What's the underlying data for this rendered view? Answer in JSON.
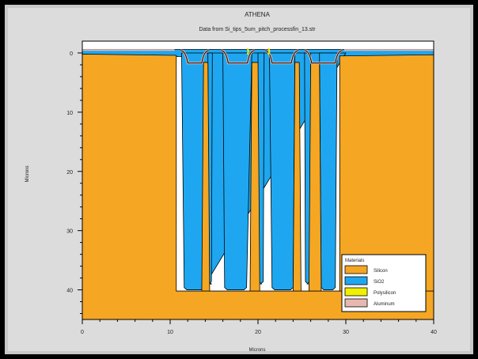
{
  "chart_data": {
    "type": "area",
    "title": "ATHENA",
    "subtitle": "Data from Si_tips_5um_pitch_processfin_13.str",
    "xlabel": "Microns",
    "ylabel": "Microns",
    "xlim": [
      0,
      40
    ],
    "ylim": [
      45,
      -2
    ],
    "x_ticks": [
      0,
      10,
      20,
      30,
      40
    ],
    "y_ticks": [
      0,
      10,
      20,
      30,
      40
    ],
    "y_inverted": true,
    "grid": false,
    "legend_position": "bottom-right",
    "legend": {
      "title": "Materials",
      "entries": [
        {
          "name": "Silicon",
          "color": "#f5a623"
        },
        {
          "name": "SiO2",
          "color": "#1ea7f0"
        },
        {
          "name": "Polysilicon",
          "color": "#f0f000"
        },
        {
          "name": "Aluminum",
          "color": "#e8b8b0"
        }
      ]
    },
    "regions": {
      "silicon": {
        "color": "#f5a623",
        "outline": [
          [
            0,
            -0.2
          ],
          [
            0,
            45
          ],
          [
            40,
            45
          ],
          [
            40,
            -0.2
          ],
          [
            39,
            0.4
          ],
          [
            31,
            0.4
          ],
          [
            30,
            0.8
          ],
          [
            29.3,
            1.6
          ],
          [
            29.3,
            40
          ],
          [
            24.7,
            40
          ],
          [
            24.7,
            2.3
          ],
          [
            24.2,
            1.5
          ],
          [
            23.7,
            0.5
          ],
          [
            22.5,
            0.3
          ],
          [
            21.3,
            0.6
          ],
          [
            20.7,
            1.7
          ],
          [
            20.7,
            2.0
          ],
          [
            20,
            2.0
          ],
          [
            19.2,
            1.2
          ],
          [
            18.5,
            0.5
          ],
          [
            17.3,
            0.3
          ],
          [
            16.2,
            0.6
          ],
          [
            15.7,
            1.6
          ],
          [
            15.3,
            2.3
          ],
          [
            15.3,
            40
          ],
          [
            10.7,
            40
          ],
          [
            10.7,
            1.0
          ],
          [
            9.5,
            0.5
          ],
          [
            1,
            0.4
          ]
        ]
      },
      "sio2": {
        "color": "#1ea7f0",
        "trenches": [
          {
            "top": [
              11.3,
              30.0
            ],
            "bottom": [
              11.6,
              13.8
            ],
            "depth": 40
          },
          {
            "top": [
              14.3,
              14.8
            ],
            "bottom": [
              14.4,
              14.7
            ],
            "depth": 39
          },
          {
            "top": [
              16.0,
              19.3
            ],
            "bottom": [
              16.2,
              18.7
            ],
            "depth": 40
          },
          {
            "top": [
              20.0,
              20.7
            ],
            "bottom": [
              20.1,
              20.6
            ],
            "depth": 39
          },
          {
            "top": [
              21.3,
              24.2
            ],
            "bottom": [
              21.6,
              24.0
            ],
            "depth": 40
          },
          {
            "top": [
              25.3,
              26.0
            ],
            "bottom": [
              25.4,
              25.9
            ],
            "depth": 39
          },
          {
            "top": [
              27.0,
              29.0
            ],
            "bottom": [
              27.2,
              28.8
            ],
            "depth": 40
          }
        ]
      },
      "polysilicon": {
        "color": "#f0f000"
      },
      "aluminum": {
        "color": "#e8b8b0"
      }
    }
  }
}
